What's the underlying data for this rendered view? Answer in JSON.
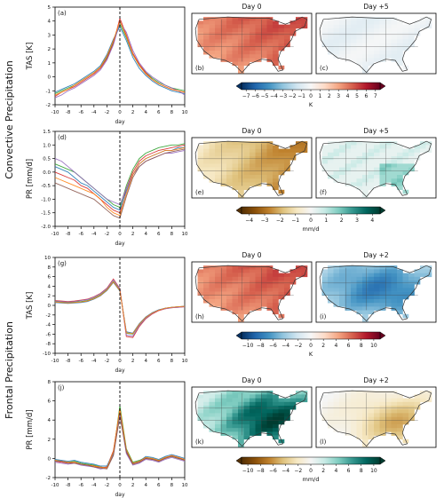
{
  "figure": {
    "groups": [
      {
        "label": "Convective Precipitation"
      },
      {
        "label": "Frontal Precipitation"
      }
    ]
  },
  "chart_data": [
    {
      "panel": "(a)",
      "type": "line",
      "ylabel": "TAS [K]",
      "xlabel": "day",
      "xlim": [
        -10,
        10
      ],
      "ylim": [
        -2,
        5
      ],
      "xticks": [
        "-10",
        "-8",
        "-6",
        "-4",
        "-2",
        "0",
        "2",
        "4",
        "6",
        "8",
        "10"
      ],
      "yticks": [
        "-2",
        "-1",
        "0",
        "1",
        "2",
        "3",
        "4",
        "5"
      ],
      "x": [
        -10,
        -9,
        -8,
        -7,
        -6,
        -5,
        -4,
        -3,
        -2,
        -1,
        0,
        1,
        2,
        3,
        4,
        5,
        6,
        7,
        8,
        9,
        10
      ],
      "series": [
        {
          "color": "#2ca02c",
          "values": [
            -1.2,
            -1.0,
            -0.8,
            -0.6,
            -0.3,
            0.0,
            0.3,
            0.7,
            1.4,
            2.5,
            3.8,
            2.8,
            1.6,
            0.8,
            0.3,
            -0.1,
            -0.4,
            -0.6,
            -0.8,
            -0.9,
            -1.0
          ]
        },
        {
          "color": "#d62728",
          "values": [
            -1.4,
            -1.1,
            -0.9,
            -0.7,
            -0.4,
            -0.1,
            0.2,
            0.6,
            1.3,
            2.4,
            4.2,
            3.0,
            1.7,
            0.9,
            0.3,
            -0.2,
            -0.5,
            -0.7,
            -0.9,
            -1.0,
            -1.1
          ]
        },
        {
          "color": "#1f77b4",
          "values": [
            -1.1,
            -0.9,
            -0.7,
            -0.5,
            -0.2,
            0.1,
            0.4,
            0.8,
            1.6,
            2.7,
            3.6,
            2.6,
            1.4,
            0.6,
            0.1,
            -0.3,
            -0.6,
            -0.8,
            -1.0,
            -1.1,
            -1.2
          ]
        },
        {
          "color": "#9467bd",
          "values": [
            -1.5,
            -1.3,
            -1.0,
            -0.8,
            -0.5,
            -0.2,
            0.1,
            0.5,
            1.2,
            2.3,
            3.9,
            3.2,
            1.9,
            1.0,
            0.4,
            0.0,
            -0.3,
            -0.6,
            -0.8,
            -1.0,
            -1.3
          ]
        },
        {
          "color": "#ff7f0e",
          "values": [
            -1.3,
            -1.1,
            -0.9,
            -0.6,
            -0.3,
            0.0,
            0.3,
            0.7,
            1.5,
            2.6,
            4.0,
            2.9,
            1.6,
            0.8,
            0.2,
            -0.2,
            -0.5,
            -0.7,
            -0.9,
            -1.0,
            -1.1
          ]
        }
      ]
    },
    {
      "panel": "(d)",
      "type": "line",
      "ylabel": "PR [mm/d]",
      "xlabel": "day",
      "xlim": [
        -10,
        10
      ],
      "ylim": [
        -2,
        1.5
      ],
      "xticks": [
        "-10",
        "-8",
        "-6",
        "-4",
        "-2",
        "0",
        "2",
        "4",
        "6",
        "8",
        "10"
      ],
      "yticks": [
        "-2.0",
        "-1.5",
        "-1.0",
        "-0.5",
        "0.0",
        "0.5",
        "1.0",
        "1.5"
      ],
      "x": [
        -10,
        -9,
        -8,
        -7,
        -6,
        -5,
        -4,
        -3,
        -2,
        -1,
        0,
        1,
        2,
        3,
        4,
        5,
        6,
        7,
        8,
        9,
        10
      ],
      "series": [
        {
          "color": "#2ca02c",
          "values": [
            0.3,
            0.2,
            0.1,
            0.0,
            -0.2,
            -0.4,
            -0.6,
            -0.8,
            -1.0,
            -1.2,
            -1.3,
            -0.5,
            0.1,
            0.5,
            0.7,
            0.8,
            0.9,
            0.95,
            1.0,
            1.0,
            1.05
          ]
        },
        {
          "color": "#d62728",
          "values": [
            0.0,
            -0.1,
            -0.2,
            -0.3,
            -0.5,
            -0.6,
            -0.8,
            -1.0,
            -1.2,
            -1.4,
            -1.5,
            -0.6,
            0.0,
            0.4,
            0.6,
            0.7,
            0.8,
            0.85,
            0.9,
            0.95,
            1.0
          ]
        },
        {
          "color": "#1f77b4",
          "values": [
            0.2,
            0.1,
            0.0,
            -0.2,
            -0.4,
            -0.5,
            -0.7,
            -0.9,
            -1.1,
            -1.3,
            -1.4,
            -0.7,
            -0.1,
            0.3,
            0.5,
            0.6,
            0.7,
            0.8,
            0.8,
            0.9,
            0.9
          ]
        },
        {
          "color": "#9467bd",
          "values": [
            0.5,
            0.4,
            0.2,
            0.0,
            -0.2,
            -0.4,
            -0.6,
            -0.8,
            -1.0,
            -1.1,
            -1.2,
            -0.6,
            -0.1,
            0.2,
            0.4,
            0.5,
            0.6,
            0.7,
            0.7,
            0.75,
            0.8
          ]
        },
        {
          "color": "#ff7f0e",
          "values": [
            -0.2,
            -0.3,
            -0.4,
            -0.5,
            -0.6,
            -0.7,
            -0.8,
            -1.0,
            -1.3,
            -1.5,
            -1.6,
            -0.8,
            -0.1,
            0.3,
            0.5,
            0.6,
            0.7,
            0.8,
            0.8,
            0.85,
            0.9
          ]
        },
        {
          "color": "#8c564b",
          "values": [
            -0.4,
            -0.5,
            -0.6,
            -0.7,
            -0.8,
            -0.9,
            -1.0,
            -1.2,
            -1.4,
            -1.6,
            -1.7,
            -0.9,
            -0.2,
            0.2,
            0.4,
            0.5,
            0.6,
            0.7,
            0.75,
            0.8,
            0.85
          ]
        }
      ]
    },
    {
      "panel": "(g)",
      "type": "line",
      "ylabel": "TAS [K]",
      "xlabel": "day",
      "xlim": [
        -10,
        10
      ],
      "ylim": [
        -10,
        10
      ],
      "xticks": [
        "-10",
        "-8",
        "-6",
        "-4",
        "-2",
        "0",
        "2",
        "4",
        "6",
        "8",
        "10"
      ],
      "yticks": [
        "-10",
        "-8",
        "-6",
        "-4",
        "-2",
        "0",
        "2",
        "4",
        "6",
        "8",
        "10"
      ],
      "x": [
        -10,
        -9,
        -8,
        -7,
        -6,
        -5,
        -4,
        -3,
        -2,
        -1,
        0,
        1,
        2,
        3,
        4,
        5,
        6,
        7,
        8,
        9,
        10
      ],
      "series": [
        {
          "color": "#2ca02c",
          "values": [
            0.8,
            0.7,
            0.6,
            0.7,
            0.8,
            1.0,
            1.5,
            2.2,
            3.3,
            5.0,
            3.2,
            -5.8,
            -6.0,
            -4.0,
            -2.6,
            -1.6,
            -1.0,
            -0.6,
            -0.4,
            -0.3,
            -0.2
          ]
        },
        {
          "color": "#d62728",
          "values": [
            1.0,
            0.9,
            0.8,
            0.9,
            1.1,
            1.3,
            1.8,
            2.5,
            3.6,
            5.5,
            3.5,
            -6.5,
            -6.7,
            -4.4,
            -2.8,
            -1.8,
            -1.1,
            -0.7,
            -0.5,
            -0.4,
            -0.3
          ]
        },
        {
          "color": "#1f77b4",
          "values": [
            0.6,
            0.5,
            0.4,
            0.5,
            0.6,
            0.8,
            1.3,
            2.0,
            3.1,
            4.8,
            3.0,
            -5.5,
            -5.8,
            -3.8,
            -2.4,
            -1.5,
            -0.9,
            -0.6,
            -0.4,
            -0.3,
            -0.2
          ]
        },
        {
          "color": "#9467bd",
          "values": [
            0.9,
            0.8,
            0.7,
            0.8,
            1.0,
            1.2,
            1.7,
            2.4,
            3.5,
            5.3,
            3.4,
            -6.2,
            -6.4,
            -4.2,
            -2.7,
            -1.7,
            -1.0,
            -0.7,
            -0.5,
            -0.4,
            -0.3
          ]
        },
        {
          "color": "#ff7f0e",
          "values": [
            0.7,
            0.6,
            0.5,
            0.6,
            0.7,
            0.9,
            1.4,
            2.1,
            3.2,
            4.9,
            3.1,
            -5.7,
            -5.9,
            -3.9,
            -2.5,
            -1.6,
            -1.0,
            -0.6,
            -0.4,
            -0.3,
            -0.2
          ]
        }
      ]
    },
    {
      "panel": "(j)",
      "type": "line",
      "ylabel": "PR [mm/d]",
      "xlabel": "day",
      "xlim": [
        -10,
        10
      ],
      "ylim": [
        -2,
        8
      ],
      "xticks": [
        "-10",
        "-8",
        "-6",
        "-4",
        "-2",
        "0",
        "2",
        "4",
        "6",
        "8",
        "10"
      ],
      "yticks": [
        "-2",
        "0",
        "2",
        "4",
        "6",
        "8"
      ],
      "x": [
        -10,
        -9,
        -8,
        -7,
        -6,
        -5,
        -4,
        -3,
        -2,
        -1,
        0,
        1,
        2,
        3,
        4,
        5,
        6,
        7,
        8,
        9,
        10
      ],
      "series": [
        {
          "color": "#2ca02c",
          "values": [
            -0.2,
            -0.3,
            -0.4,
            -0.3,
            -0.5,
            -0.6,
            -0.7,
            -0.9,
            -1.0,
            0.5,
            5.5,
            1.0,
            -0.4,
            -0.2,
            0.1,
            0.0,
            -0.2,
            0.1,
            0.2,
            0.0,
            -0.1
          ]
        },
        {
          "color": "#d62728",
          "values": [
            -0.3,
            -0.4,
            -0.5,
            -0.4,
            -0.6,
            -0.7,
            -0.8,
            -1.0,
            -0.9,
            0.8,
            5.0,
            0.6,
            -0.6,
            -0.4,
            0.0,
            -0.1,
            -0.3,
            0.0,
            0.3,
            0.1,
            -0.2
          ]
        },
        {
          "color": "#1f77b4",
          "values": [
            -0.1,
            -0.2,
            -0.3,
            -0.2,
            -0.4,
            -0.5,
            -0.6,
            -0.8,
            -0.8,
            0.6,
            4.8,
            0.8,
            -0.5,
            -0.3,
            0.2,
            0.1,
            -0.1,
            0.2,
            0.4,
            0.2,
            0.0
          ]
        },
        {
          "color": "#9467bd",
          "values": [
            -0.4,
            -0.5,
            -0.6,
            -0.5,
            -0.7,
            -0.8,
            -0.9,
            -1.1,
            -1.0,
            0.4,
            4.6,
            0.5,
            -0.7,
            -0.5,
            -0.1,
            -0.2,
            -0.4,
            -0.1,
            0.1,
            -0.1,
            -0.3
          ]
        },
        {
          "color": "#ff7f0e",
          "values": [
            -0.2,
            -0.3,
            -0.4,
            -0.4,
            -0.6,
            -0.7,
            -0.8,
            -0.9,
            -1.0,
            0.7,
            5.2,
            0.9,
            -0.5,
            -0.3,
            0.1,
            0.0,
            -0.2,
            0.1,
            0.3,
            0.1,
            -0.1
          ]
        },
        {
          "color": "#8c564b",
          "values": [
            -0.3,
            -0.3,
            -0.5,
            -0.5,
            -0.6,
            -0.7,
            -0.9,
            -1.0,
            -1.1,
            0.3,
            4.4,
            0.7,
            -0.6,
            -0.4,
            0.0,
            -0.1,
            -0.3,
            0.0,
            0.2,
            0.0,
            -0.2
          ]
        }
      ]
    }
  ],
  "maps": [
    {
      "panel": "(b)",
      "title": "Day 0",
      "colormap": "tas",
      "pattern": "warm"
    },
    {
      "panel": "(c)",
      "title": "Day +5",
      "colormap": "tas",
      "pattern": "neutral"
    },
    {
      "panel": "(e)",
      "title": "Day 0",
      "colormap": "pr",
      "pattern": "dry"
    },
    {
      "panel": "(f)",
      "title": "Day +5",
      "colormap": "pr",
      "pattern": "wet-se"
    },
    {
      "panel": "(h)",
      "title": "Day 0",
      "colormap": "tas",
      "pattern": "warm"
    },
    {
      "panel": "(i)",
      "title": "Day +2",
      "colormap": "tas",
      "pattern": "cold"
    },
    {
      "panel": "(k)",
      "title": "Day 0",
      "colormap": "pr",
      "pattern": "wet-east"
    },
    {
      "panel": "(l)",
      "title": "Day +2",
      "colormap": "pr",
      "pattern": "dry-east"
    }
  ],
  "colorbars": [
    {
      "id": "cb1",
      "colormap": "tas",
      "ticks": [
        "−7",
        "−6",
        "−5",
        "−4",
        "−3",
        "−2",
        "−1",
        "0",
        "1",
        "2",
        "3",
        "4",
        "5",
        "6",
        "7"
      ],
      "unit": "K"
    },
    {
      "id": "cb2",
      "colormap": "pr",
      "ticks": [
        "−4",
        "−3",
        "−2",
        "−1",
        "0",
        "1",
        "2",
        "3",
        "4"
      ],
      "unit": "mm/d"
    },
    {
      "id": "cb3",
      "colormap": "tas",
      "ticks": [
        "−10",
        "−8",
        "−6",
        "−4",
        "−2",
        "0",
        "2",
        "4",
        "6",
        "8",
        "10"
      ],
      "unit": "K"
    },
    {
      "id": "cb4",
      "colormap": "pr",
      "ticks": [
        "−10",
        "−8",
        "−6",
        "−4",
        "−2",
        "0",
        "2",
        "4",
        "6",
        "8",
        "10"
      ],
      "unit": "mm/d"
    }
  ],
  "colormaps": {
    "tas": [
      "#053061",
      "#2166ac",
      "#4393c3",
      "#92c5de",
      "#d1e5f0",
      "#f7f7f7",
      "#fddbc7",
      "#f4a582",
      "#d6604d",
      "#b2182b",
      "#67001f"
    ],
    "pr": [
      "#543005",
      "#8c510a",
      "#bf812d",
      "#dfc27d",
      "#f6e8c3",
      "#f5f5f5",
      "#c7eae5",
      "#80cdc1",
      "#35978f",
      "#01665e",
      "#003c30"
    ]
  }
}
